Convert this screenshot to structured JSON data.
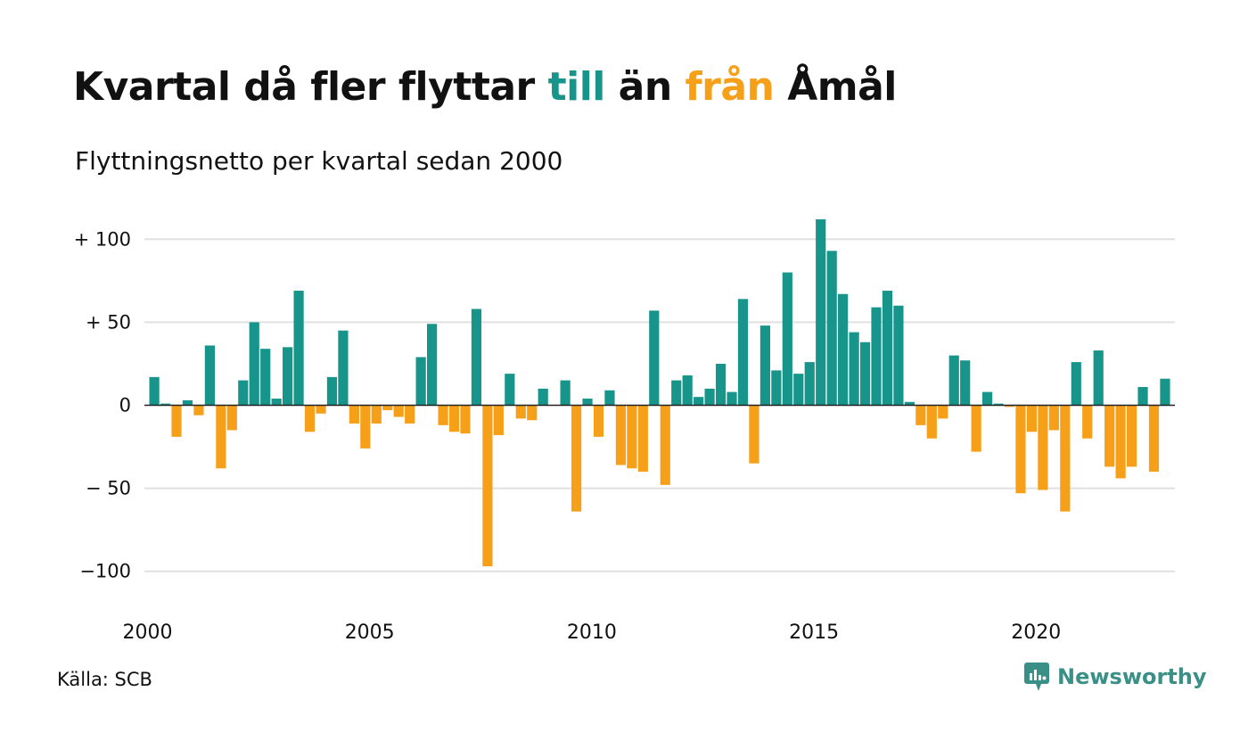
{
  "title": {
    "part1": "Kvartal då fler flyttar ",
    "till": "till",
    "part2": " än ",
    "fran": "från",
    "part3": " Åmål"
  },
  "subtitle": "Flyttningsnetto per kvartal sedan 2000",
  "source": "Källa: SCB",
  "brand": {
    "name": "Newsworthy",
    "icon": "newsworthy-logo-icon"
  },
  "colors": {
    "positive": "#17958a",
    "negative": "#f6a01a",
    "grid": "#e0e0e0",
    "axis": "#222222",
    "text": "#111111"
  },
  "chart_data": {
    "type": "bar",
    "title": "Kvartal då fler flyttar till än från Åmål",
    "subtitle": "Flyttningsnetto per kvartal sedan 2000",
    "x_start": "2000 Q1",
    "x_tick_labels": [
      "2000",
      "2005",
      "2010",
      "2015",
      "2020"
    ],
    "y_tick_labels": [
      "+ 100",
      "+  50",
      "0",
      "− 50",
      "−100"
    ],
    "y_ticks": [
      100,
      50,
      0,
      -50,
      -100
    ],
    "ylim": [
      -110,
      120
    ],
    "grid": true,
    "legend": "none",
    "values": [
      17,
      1,
      -19,
      3,
      -6,
      36,
      -38,
      -15,
      15,
      50,
      34,
      4,
      35,
      69,
      -16,
      -5,
      17,
      45,
      -11,
      -26,
      -11,
      -3,
      -7,
      -11,
      29,
      49,
      -12,
      -16,
      -17,
      58,
      -97,
      -18,
      19,
      -8,
      -9,
      10,
      0,
      15,
      -64,
      4,
      -19,
      9,
      -36,
      -38,
      -40,
      57,
      -48,
      15,
      18,
      5,
      10,
      25,
      8,
      64,
      -35,
      48,
      21,
      80,
      19,
      26,
      112,
      93,
      67,
      44,
      38,
      59,
      69,
      60,
      2,
      -12,
      -20,
      -8,
      30,
      27,
      -28,
      8,
      1,
      -1,
      -53,
      -16,
      -51,
      -15,
      -64,
      26,
      -20,
      33,
      -37,
      -44,
      -37,
      11,
      -40,
      16
    ]
  }
}
